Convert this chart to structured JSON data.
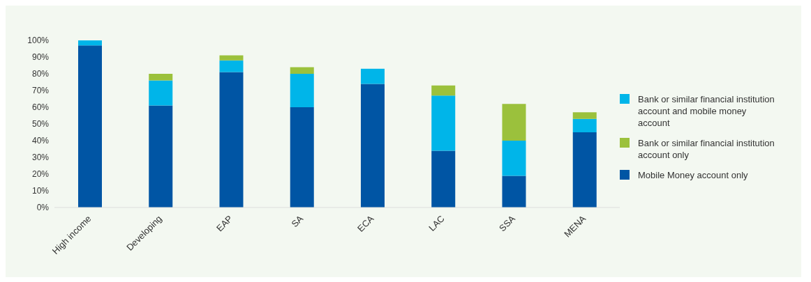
{
  "chart_data": {
    "type": "bar",
    "stacked": true,
    "categories": [
      "High income",
      "Developing",
      "EAP",
      "SA",
      "ECA",
      "LAC",
      "SSA",
      "MENA"
    ],
    "series": [
      {
        "name": "Mobile Money account only",
        "color": "#0055a4",
        "values": [
          97,
          61,
          81,
          60,
          74,
          34,
          19,
          45
        ]
      },
      {
        "name": "Bank or similar financial institution account and mobile money account",
        "color": "#00b5e9",
        "values": [
          3,
          15,
          7,
          20,
          9,
          33,
          21,
          8
        ]
      },
      {
        "name": "Bank or similar financial institution account only",
        "color": "#9bc13c",
        "values": [
          0,
          4,
          3,
          4,
          0,
          6,
          22,
          4
        ]
      }
    ],
    "ylim": [
      0,
      100
    ],
    "yticks": [
      {
        "value": 0,
        "label": "0%"
      },
      {
        "value": 10,
        "label": "10%"
      },
      {
        "value": 20,
        "label": "20%"
      },
      {
        "value": 30,
        "label": "30%"
      },
      {
        "value": 40,
        "label": "40%"
      },
      {
        "value": 50,
        "label": "50%"
      },
      {
        "value": 60,
        "label": "60%"
      },
      {
        "value": 70,
        "label": "70%"
      },
      {
        "value": 80,
        "label": "80%"
      },
      {
        "value": 90,
        "label": "90%"
      },
      {
        "value": 100,
        "label": "100%"
      }
    ],
    "legend": "right",
    "grid": false
  }
}
